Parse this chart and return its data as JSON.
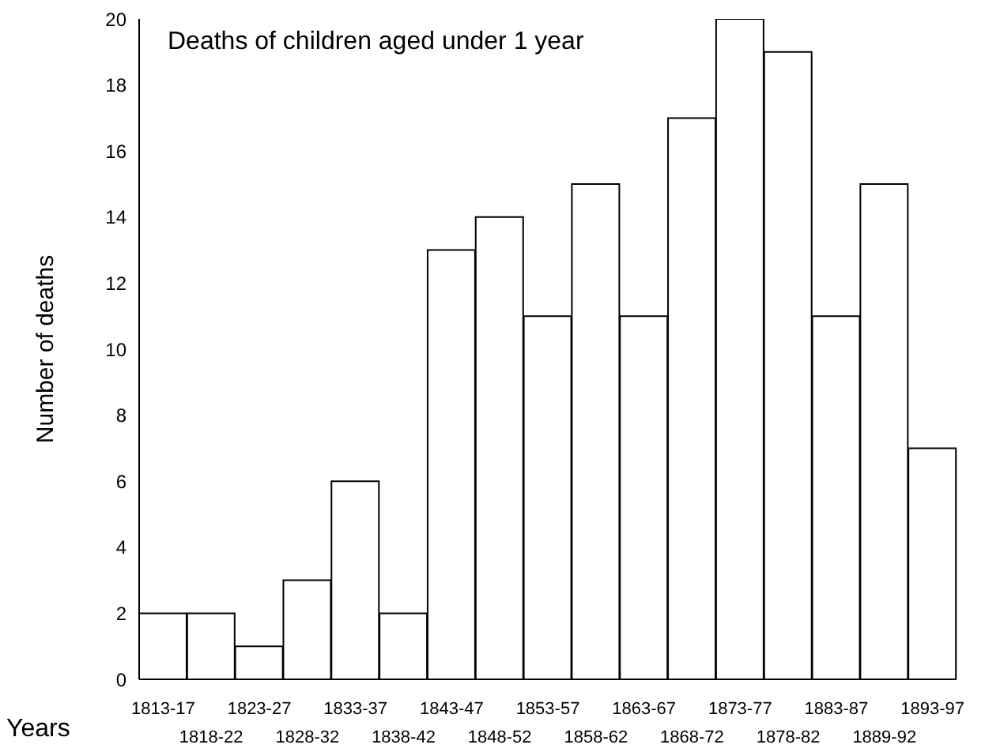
{
  "chart_data": {
    "type": "bar",
    "title": "Deaths of children aged under 1 year",
    "xlabel": "Years",
    "ylabel": "Number of deaths",
    "categories": [
      "1813-17",
      "1818-22",
      "1823-27",
      "1828-32",
      "1833-37",
      "1838-42",
      "1843-47",
      "1848-52",
      "1853-57",
      "1858-62",
      "1863-67",
      "1868-72",
      "1873-77",
      "1878-82",
      "1883-87",
      "1889-92",
      "1893-97"
    ],
    "values": [
      2,
      2,
      1,
      3,
      6,
      2,
      13,
      14,
      11,
      15,
      11,
      17,
      20,
      19,
      11,
      15,
      7
    ],
    "color": "#ffffff",
    "ylim": [
      0,
      20
    ],
    "yticks": [
      0,
      2,
      4,
      6,
      8,
      10,
      12,
      14,
      16,
      18,
      20
    ]
  }
}
